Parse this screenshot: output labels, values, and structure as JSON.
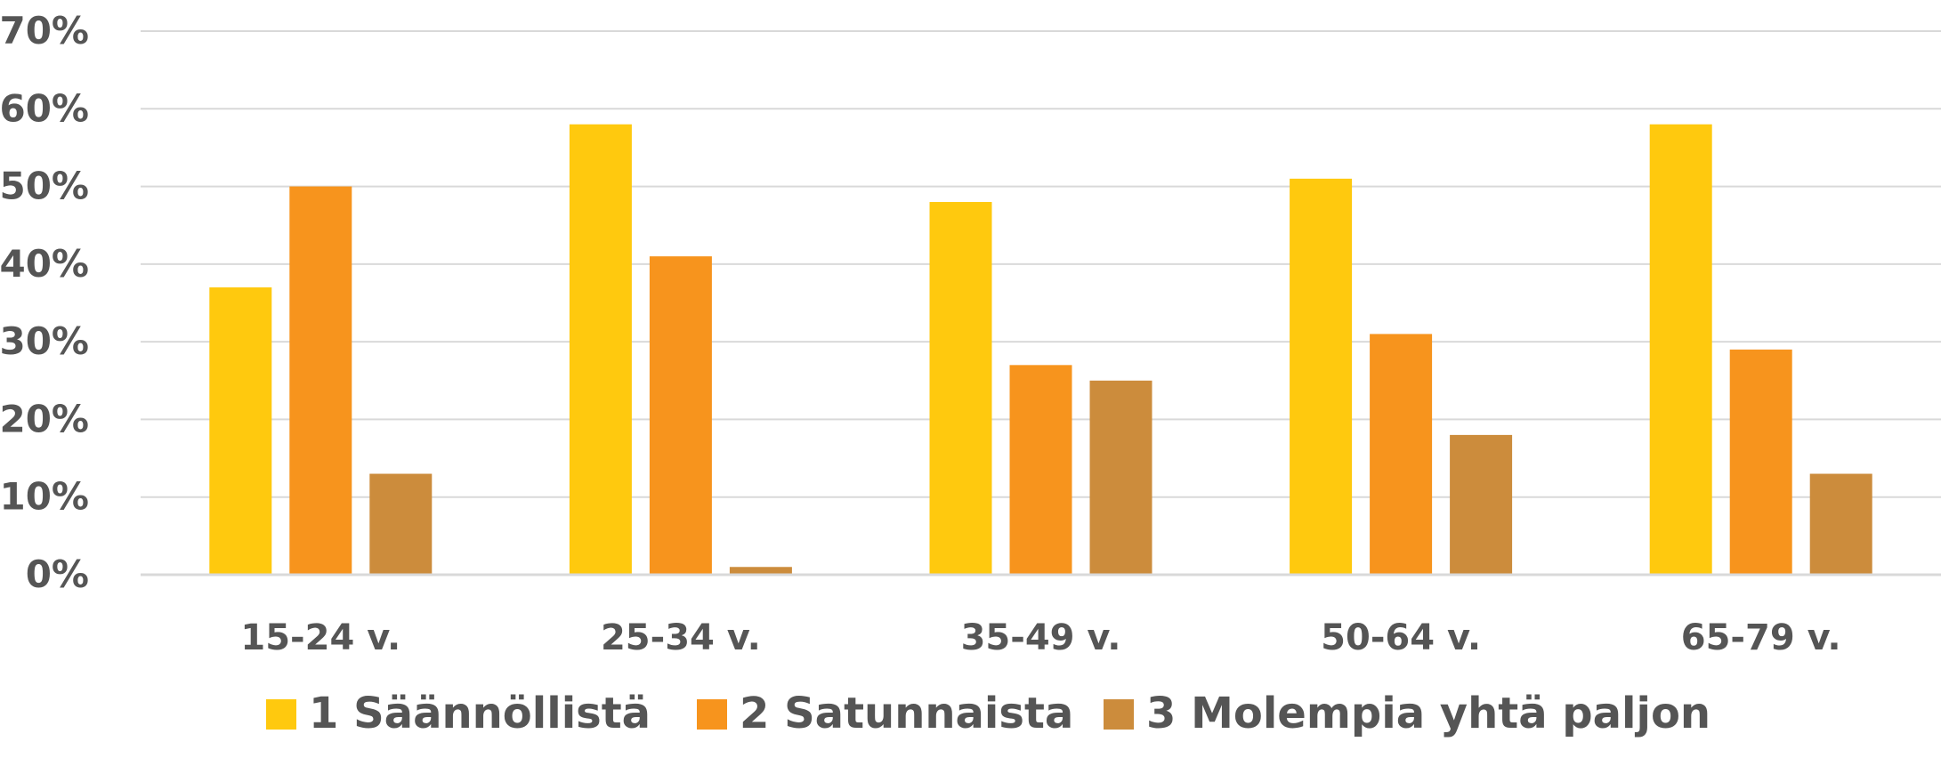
{
  "chart_data": {
    "type": "bar",
    "categories": [
      "15-24 v.",
      "25-34 v.",
      "35-49 v.",
      "50-64 v.",
      "65-79 v."
    ],
    "series": [
      {
        "name": "1 Säännöllistä",
        "color": "#FFC90E",
        "values": [
          37,
          58,
          48,
          51,
          58
        ]
      },
      {
        "name": "2 Satunnaista",
        "color": "#F7941D",
        "values": [
          50,
          41,
          27,
          31,
          29
        ]
      },
      {
        "name": "3 Molempia yhtä paljon",
        "color": "#CC8C3C",
        "values": [
          13,
          1,
          25,
          18,
          13
        ]
      }
    ],
    "yticks": [
      "0%",
      "10%",
      "20%",
      "30%",
      "40%",
      "50%",
      "60%",
      "70%"
    ],
    "ylim": [
      0,
      70
    ],
    "unit": "%",
    "grid": true,
    "legend_position": "bottom"
  }
}
